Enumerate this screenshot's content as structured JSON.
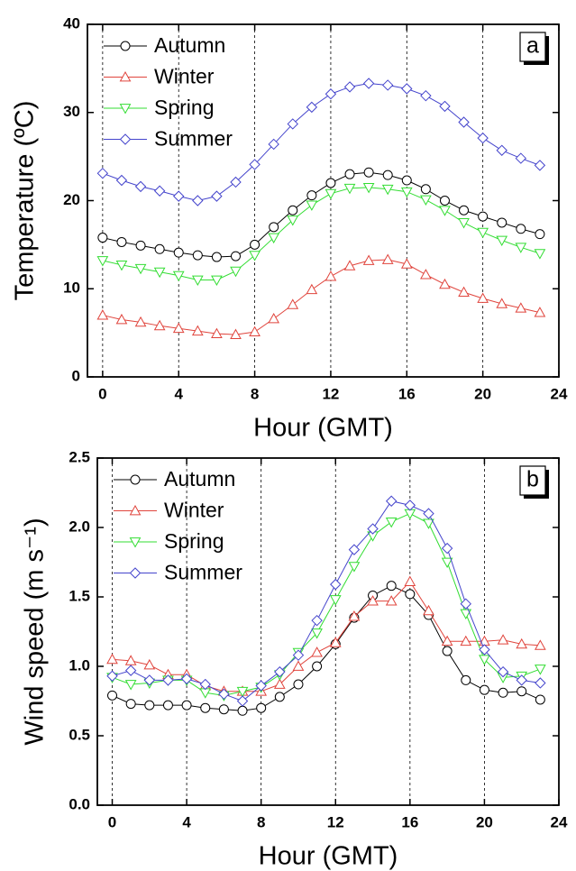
{
  "chart_data": [
    {
      "type": "line",
      "panel_label": "a",
      "x_label": "Hour (GMT)",
      "y_label": "Temperature (ºC)",
      "x": [
        0,
        1,
        2,
        3,
        4,
        5,
        6,
        7,
        8,
        9,
        10,
        11,
        12,
        13,
        14,
        15,
        16,
        17,
        18,
        19,
        20,
        21,
        22,
        23
      ],
      "xlim": [
        -0.8,
        24
      ],
      "xticks": [
        0,
        4,
        8,
        12,
        16,
        20,
        24
      ],
      "ylim": [
        0,
        40
      ],
      "yticks": [
        0,
        10,
        20,
        30,
        40
      ],
      "grid": "x",
      "legend": "upper left",
      "series": [
        {
          "name": "Autumn",
          "color": "#000000",
          "marker": "circle",
          "values": [
            15.8,
            15.3,
            14.9,
            14.5,
            14.1,
            13.8,
            13.6,
            13.7,
            15.0,
            17.0,
            18.9,
            20.6,
            22.0,
            23.0,
            23.2,
            22.9,
            22.3,
            21.3,
            20.0,
            18.9,
            18.2,
            17.5,
            16.8,
            16.2
          ]
        },
        {
          "name": "Winter",
          "color": "#e0443c",
          "marker": "triangle-up",
          "values": [
            7.0,
            6.5,
            6.2,
            5.8,
            5.5,
            5.2,
            4.9,
            4.8,
            5.1,
            6.6,
            8.2,
            9.9,
            11.4,
            12.6,
            13.2,
            13.3,
            12.8,
            11.6,
            10.5,
            9.6,
            8.9,
            8.3,
            7.8,
            7.3
          ]
        },
        {
          "name": "Spring",
          "color": "#33dd33",
          "marker": "triangle-down",
          "values": [
            13.2,
            12.7,
            12.3,
            11.9,
            11.5,
            11.0,
            11.0,
            12.0,
            13.8,
            15.8,
            17.8,
            19.5,
            20.8,
            21.4,
            21.5,
            21.3,
            21.0,
            20.1,
            18.9,
            17.5,
            16.4,
            15.5,
            14.7,
            14.0
          ]
        },
        {
          "name": "Summer",
          "color": "#4444cc",
          "marker": "diamond",
          "values": [
            23.1,
            22.3,
            21.6,
            21.1,
            20.5,
            20.0,
            20.5,
            22.1,
            24.1,
            26.4,
            28.7,
            30.6,
            32.1,
            32.9,
            33.3,
            33.1,
            32.7,
            31.9,
            30.7,
            28.9,
            27.1,
            25.7,
            24.8,
            24.0
          ]
        }
      ]
    },
    {
      "type": "line",
      "panel_label": "b",
      "x_label": "Hour (GMT)",
      "y_label": "Wind speed (m s⁻¹)",
      "x": [
        0,
        1,
        2,
        3,
        4,
        5,
        6,
        7,
        8,
        9,
        10,
        11,
        12,
        13,
        14,
        15,
        16,
        17,
        18,
        19,
        20,
        21,
        22,
        23
      ],
      "xlim": [
        -0.8,
        24
      ],
      "xticks": [
        0,
        4,
        8,
        12,
        16,
        20,
        24
      ],
      "ylim": [
        0,
        2.5
      ],
      "yticks": [
        {
          "value": 0,
          "label": "0.0"
        },
        0.5,
        {
          "value": 1,
          "label": "1.0"
        },
        1.5,
        {
          "value": 2,
          "label": "2.0"
        },
        2.5
      ],
      "grid": "x",
      "legend": "upper left",
      "series": [
        {
          "name": "Autumn",
          "color": "#000000",
          "marker": "circle",
          "values": [
            0.79,
            0.73,
            0.72,
            0.72,
            0.72,
            0.7,
            0.69,
            0.68,
            0.7,
            0.78,
            0.87,
            1.0,
            1.16,
            1.35,
            1.51,
            1.58,
            1.52,
            1.37,
            1.11,
            0.9,
            0.83,
            0.81,
            0.82,
            0.76
          ]
        },
        {
          "name": "Winter",
          "color": "#e0443c",
          "marker": "triangle-up",
          "values": [
            1.05,
            1.04,
            1.01,
            0.94,
            0.94,
            0.86,
            0.82,
            0.82,
            0.82,
            0.87,
            1.0,
            1.1,
            1.17,
            1.36,
            1.47,
            1.47,
            1.61,
            1.4,
            1.18,
            1.18,
            1.18,
            1.19,
            1.16,
            1.15
          ]
        },
        {
          "name": "Spring",
          "color": "#33dd33",
          "marker": "triangle-down",
          "values": [
            0.92,
            0.87,
            0.88,
            0.9,
            0.9,
            0.81,
            0.79,
            0.82,
            0.85,
            0.94,
            1.1,
            1.24,
            1.48,
            1.72,
            1.94,
            2.04,
            2.1,
            2.03,
            1.75,
            1.38,
            1.05,
            0.92,
            0.93,
            0.98
          ]
        },
        {
          "name": "Summer",
          "color": "#4444cc",
          "marker": "diamond",
          "values": [
            0.93,
            0.97,
            0.9,
            0.9,
            0.91,
            0.87,
            0.8,
            0.75,
            0.86,
            0.96,
            1.08,
            1.33,
            1.59,
            1.84,
            1.99,
            2.19,
            2.16,
            2.1,
            1.85,
            1.45,
            1.12,
            0.96,
            0.9,
            0.88
          ]
        }
      ]
    }
  ]
}
